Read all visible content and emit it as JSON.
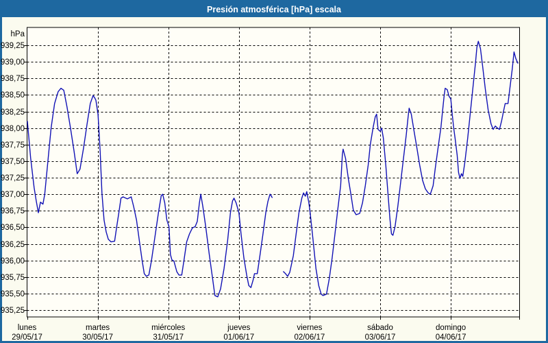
{
  "window": {
    "title": "Presión atmosférica [hPa] escala",
    "frame_color": "#1e68a0",
    "content_background": "#fbfbef"
  },
  "chart_data": {
    "type": "line",
    "title": "Presión atmosférica [hPa] escala",
    "plot_background": "#fffef7",
    "grid": "dashed-both-axes",
    "y_axis": {
      "unit": "hPa",
      "min": 935.25,
      "max": 939.25,
      "step": 0.25,
      "tick_labels": [
        "939,25",
        "939,00",
        "938,75",
        "938,50",
        "938,25",
        "938,00",
        "937,75",
        "937,50",
        "937,25",
        "937,00",
        "936,75",
        "936,50",
        "936,25",
        "936,00",
        "935,75",
        "935,50",
        "935,25"
      ]
    },
    "x_axis": {
      "range_days": [
        0,
        6.974
      ],
      "days": [
        {
          "name": "lunes",
          "date": "29/05/17"
        },
        {
          "name": "martes",
          "date": "30/05/17"
        },
        {
          "name": "miércoles",
          "date": "31/05/17"
        },
        {
          "name": "jueves",
          "date": "01/06/17"
        },
        {
          "name": "viernes",
          "date": "02/06/17"
        },
        {
          "name": "sábado",
          "date": "03/06/17"
        },
        {
          "name": "domingo",
          "date": "04/06/17"
        }
      ]
    },
    "series": [
      {
        "name": "presión atmosférica",
        "color": "#1111b5",
        "segments": [
          [
            [
              0.005,
              938.1
            ],
            [
              0.05,
              937.55
            ],
            [
              0.1,
              937.1
            ],
            [
              0.13,
              936.9
            ],
            [
              0.16,
              936.72
            ],
            [
              0.19,
              936.88
            ],
            [
              0.225,
              936.85
            ],
            [
              0.25,
              937.0
            ],
            [
              0.3,
              937.55
            ],
            [
              0.34,
              938.0
            ],
            [
              0.39,
              938.37
            ],
            [
              0.44,
              938.55
            ],
            [
              0.48,
              938.6
            ],
            [
              0.52,
              938.57
            ],
            [
              0.565,
              938.32
            ],
            [
              0.615,
              938.0
            ],
            [
              0.665,
              937.65
            ],
            [
              0.71,
              937.31
            ],
            [
              0.75,
              937.38
            ],
            [
              0.8,
              937.7
            ],
            [
              0.85,
              938.06
            ],
            [
              0.895,
              938.37
            ],
            [
              0.935,
              938.49
            ],
            [
              0.955,
              938.46
            ],
            [
              0.975,
              938.42
            ],
            [
              1.005,
              938.21
            ],
            [
              1.035,
              937.65
            ],
            [
              1.06,
              937.02
            ],
            [
              1.09,
              936.61
            ],
            [
              1.12,
              936.43
            ],
            [
              1.15,
              936.32
            ],
            [
              1.19,
              936.28
            ],
            [
              1.24,
              936.29
            ],
            [
              1.27,
              936.51
            ],
            [
              1.3,
              936.72
            ],
            [
              1.33,
              936.94
            ],
            [
              1.36,
              936.96
            ],
            [
              1.42,
              936.93
            ],
            [
              1.475,
              936.96
            ],
            [
              1.51,
              936.81
            ],
            [
              1.55,
              936.61
            ],
            [
              1.59,
              936.3
            ],
            [
              1.63,
              935.99
            ],
            [
              1.66,
              935.8
            ],
            [
              1.69,
              935.76
            ],
            [
              1.725,
              935.78
            ],
            [
              1.76,
              935.99
            ],
            [
              1.81,
              936.35
            ],
            [
              1.86,
              936.72
            ],
            [
              1.9,
              936.98
            ],
            [
              1.92,
              937.0
            ],
            [
              1.95,
              936.87
            ],
            [
              1.98,
              936.61
            ],
            [
              2.01,
              936.51
            ],
            [
              2.03,
              936.09
            ],
            [
              2.05,
              936.01
            ],
            [
              2.08,
              935.99
            ],
            [
              2.12,
              935.83
            ],
            [
              2.15,
              935.78
            ],
            [
              2.19,
              935.78
            ],
            [
              2.22,
              935.99
            ],
            [
              2.26,
              936.28
            ],
            [
              2.3,
              936.4
            ],
            [
              2.34,
              936.49
            ],
            [
              2.38,
              936.51
            ],
            [
              2.41,
              936.59
            ],
            [
              2.44,
              936.87
            ],
            [
              2.46,
              937.0
            ],
            [
              2.49,
              936.81
            ],
            [
              2.53,
              936.51
            ],
            [
              2.58,
              936.09
            ],
            [
              2.63,
              935.7
            ],
            [
              2.66,
              935.47
            ],
            [
              2.7,
              935.45
            ],
            [
              2.74,
              935.57
            ],
            [
              2.79,
              935.88
            ],
            [
              2.84,
              936.3
            ],
            [
              2.88,
              936.72
            ],
            [
              2.91,
              936.9
            ],
            [
              2.93,
              936.94
            ],
            [
              2.96,
              936.87
            ],
            [
              3.0,
              936.72
            ],
            [
              3.03,
              936.4
            ],
            [
              3.07,
              936.04
            ],
            [
              3.11,
              935.78
            ],
            [
              3.14,
              935.62
            ],
            [
              3.17,
              935.59
            ],
            [
              3.2,
              935.7
            ],
            [
              3.22,
              935.8
            ],
            [
              3.26,
              935.8
            ],
            [
              3.3,
              936.09
            ],
            [
              3.34,
              936.4
            ],
            [
              3.38,
              936.72
            ],
            [
              3.41,
              936.89
            ],
            [
              3.44,
              937.0
            ],
            [
              3.455,
              936.98
            ],
            [
              3.47,
              936.95
            ]
          ],
          [
            [
              3.63,
              935.83
            ],
            [
              3.66,
              935.8
            ],
            [
              3.69,
              935.76
            ],
            [
              3.72,
              935.82
            ],
            [
              3.77,
              936.07
            ],
            [
              3.81,
              936.4
            ],
            [
              3.85,
              936.72
            ],
            [
              3.89,
              936.94
            ],
            [
              3.915,
              937.02
            ],
            [
              3.94,
              936.97
            ],
            [
              3.96,
              937.04
            ],
            [
              3.99,
              936.87
            ],
            [
              4.01,
              936.71
            ],
            [
              4.05,
              936.3
            ],
            [
              4.09,
              935.88
            ],
            [
              4.13,
              935.62
            ],
            [
              4.165,
              935.49
            ],
            [
              4.19,
              935.47
            ],
            [
              4.24,
              935.49
            ],
            [
              4.28,
              935.73
            ],
            [
              4.32,
              936.04
            ],
            [
              4.36,
              936.4
            ],
            [
              4.4,
              936.77
            ],
            [
              4.44,
              937.13
            ],
            [
              4.465,
              937.6
            ],
            [
              4.475,
              937.68
            ],
            [
              4.51,
              937.54
            ],
            [
              4.55,
              937.23
            ],
            [
              4.59,
              936.97
            ],
            [
              4.62,
              936.76
            ],
            [
              4.66,
              936.69
            ],
            [
              4.71,
              936.71
            ],
            [
              4.75,
              936.87
            ],
            [
              4.79,
              937.13
            ],
            [
              4.83,
              937.44
            ],
            [
              4.86,
              937.75
            ],
            [
              4.9,
              938.01
            ],
            [
              4.93,
              938.17
            ],
            [
              4.95,
              938.21
            ],
            [
              4.97,
              937.98
            ],
            [
              5.0,
              937.95
            ],
            [
              5.02,
              938.0
            ],
            [
              5.045,
              937.85
            ],
            [
              5.08,
              937.44
            ],
            [
              5.11,
              937.02
            ],
            [
              5.14,
              936.61
            ],
            [
              5.16,
              936.4
            ],
            [
              5.18,
              936.38
            ],
            [
              5.21,
              936.51
            ],
            [
              5.25,
              936.82
            ],
            [
              5.29,
              937.18
            ],
            [
              5.33,
              937.54
            ],
            [
              5.37,
              937.9
            ],
            [
              5.395,
              938.16
            ],
            [
              5.41,
              938.3
            ],
            [
              5.44,
              938.21
            ],
            [
              5.48,
              937.95
            ],
            [
              5.52,
              937.7
            ],
            [
              5.56,
              937.44
            ],
            [
              5.6,
              937.21
            ],
            [
              5.64,
              937.08
            ],
            [
              5.68,
              937.02
            ],
            [
              5.71,
              937.0
            ],
            [
              5.75,
              937.13
            ],
            [
              5.78,
              937.39
            ],
            [
              5.82,
              937.7
            ],
            [
              5.86,
              938.01
            ],
            [
              5.885,
              938.27
            ],
            [
              5.905,
              938.48
            ],
            [
              5.92,
              938.6
            ],
            [
              5.95,
              938.58
            ],
            [
              5.975,
              938.48
            ],
            [
              6.0,
              938.44
            ],
            [
              6.02,
              938.21
            ],
            [
              6.04,
              938.01
            ],
            [
              6.06,
              937.85
            ],
            [
              6.09,
              937.59
            ],
            [
              6.11,
              937.33
            ],
            [
              6.13,
              937.24
            ],
            [
              6.15,
              937.31
            ],
            [
              6.17,
              937.27
            ],
            [
              6.2,
              937.49
            ],
            [
              6.24,
              937.85
            ],
            [
              6.28,
              938.27
            ],
            [
              6.32,
              938.68
            ],
            [
              6.35,
              938.99
            ],
            [
              6.37,
              939.22
            ],
            [
              6.39,
              939.31
            ],
            [
              6.42,
              939.2
            ],
            [
              6.45,
              938.94
            ],
            [
              6.49,
              938.58
            ],
            [
              6.53,
              938.27
            ],
            [
              6.57,
              938.06
            ],
            [
              6.6,
              937.98
            ],
            [
              6.63,
              938.03
            ],
            [
              6.66,
              938.0
            ],
            [
              6.69,
              937.98
            ],
            [
              6.72,
              938.11
            ],
            [
              6.75,
              938.27
            ],
            [
              6.77,
              938.37
            ],
            [
              6.81,
              938.37
            ],
            [
              6.84,
              938.63
            ],
            [
              6.87,
              938.89
            ],
            [
              6.895,
              939.15
            ],
            [
              6.92,
              939.05
            ],
            [
              6.95,
              938.98
            ]
          ]
        ]
      }
    ]
  }
}
